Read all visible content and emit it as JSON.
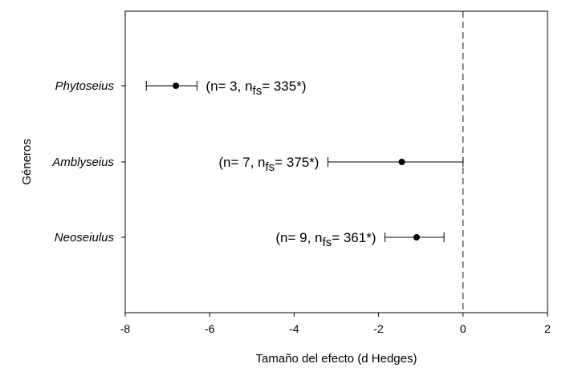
{
  "chart_data": {
    "type": "scatter",
    "subtype": "forest-plot",
    "xlabel": "Tamaño del efecto (d Hedges)",
    "ylabel": "Géneros",
    "xlim": [
      -8,
      2
    ],
    "xticks": [
      -8,
      -6,
      -4,
      -2,
      0,
      2
    ],
    "reference_line": 0,
    "reference_line_style": "dashed",
    "grid": false,
    "points": [
      {
        "category": "Phytoseius",
        "estimate": -6.8,
        "ci_low": -7.5,
        "ci_high": -6.3,
        "n_text": "(n= 3, n",
        "fs_sub": "fs",
        "fs_text": "= 335*)"
      },
      {
        "category": "Amblyseius",
        "estimate": -1.45,
        "ci_low": -3.2,
        "ci_high": 0.0,
        "n_text": "(n= 7, n",
        "fs_sub": "fs",
        "fs_text": "= 375*)"
      },
      {
        "category": "Neoseiulus",
        "estimate": -1.1,
        "ci_low": -1.85,
        "ci_high": -0.45,
        "n_text": "(n= 9, n",
        "fs_sub": "fs",
        "fs_text": "= 361*)"
      }
    ]
  }
}
